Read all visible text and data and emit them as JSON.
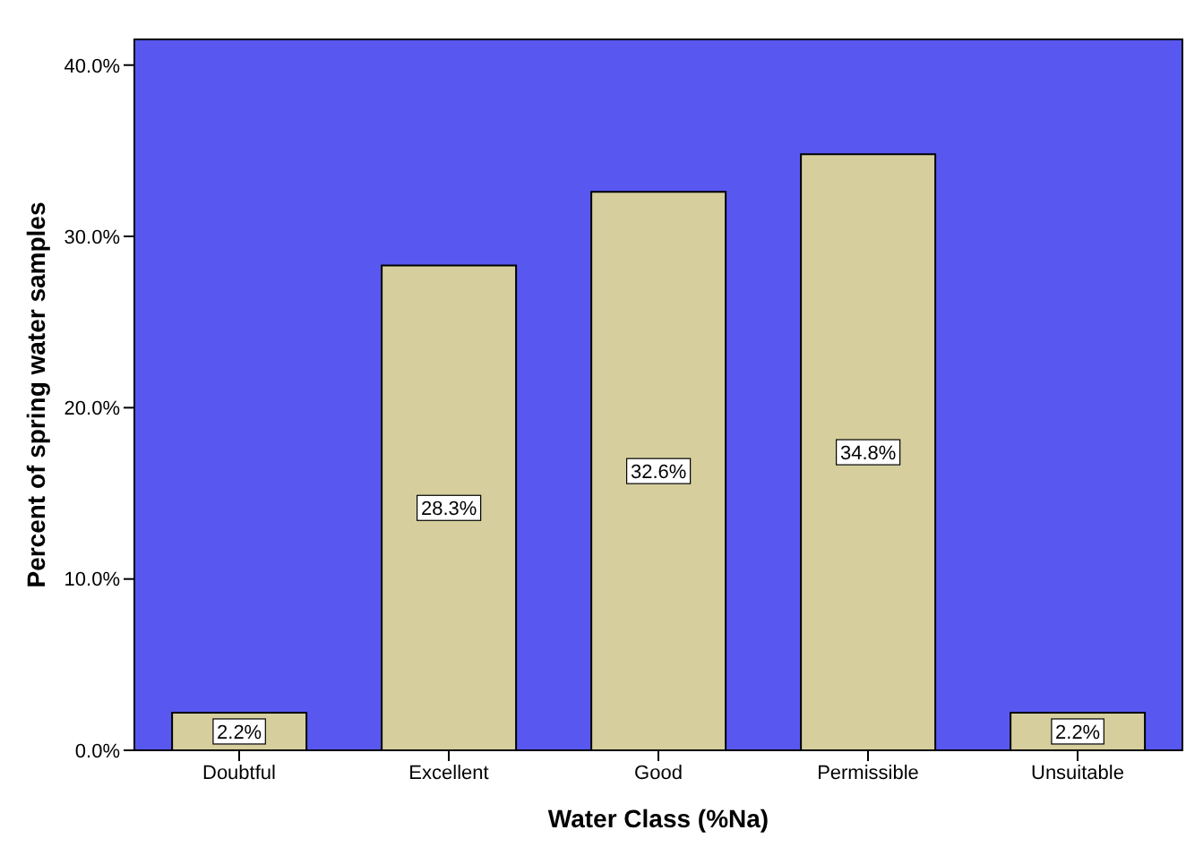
{
  "chart_data": {
    "type": "bar",
    "xlabel": "Water Class (%Na)",
    "ylabel": "Percent of spring water samples",
    "categories": [
      "Doubtful",
      "Excellent",
      "Good",
      "Permissible",
      "Unsuitable"
    ],
    "values": [
      2.2,
      28.3,
      32.6,
      34.8,
      2.2
    ],
    "value_labels": [
      "2.2%",
      "28.3%",
      "32.6%",
      "34.8%",
      "2.2%"
    ],
    "color": "#d6cf9d",
    "ylim": [
      0,
      41.5
    ],
    "yticks": [
      {
        "value": 0,
        "label": "0.0%"
      },
      {
        "value": 10,
        "label": "10.0%"
      },
      {
        "value": 20,
        "label": "20.0%"
      },
      {
        "value": 30,
        "label": "30.0%"
      },
      {
        "value": 40,
        "label": "40.0%"
      }
    ]
  }
}
